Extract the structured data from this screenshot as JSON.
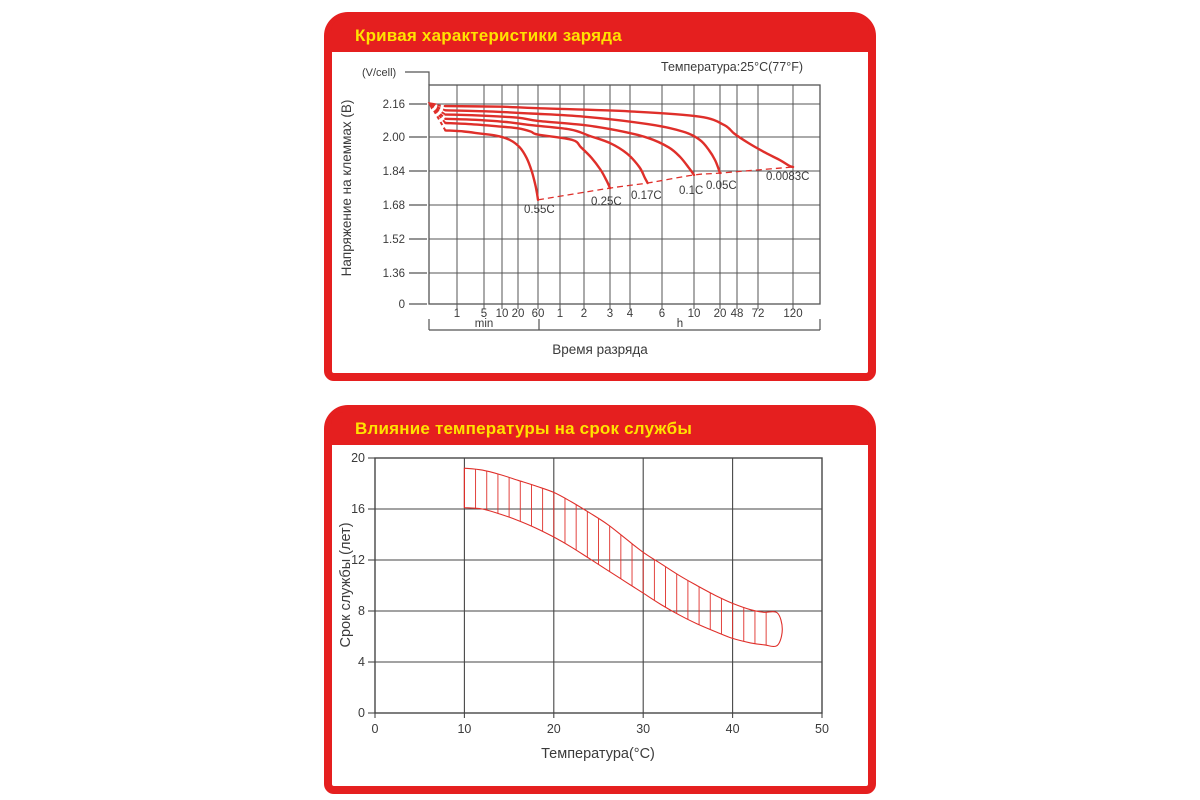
{
  "page": {
    "background": "#ffffff"
  },
  "colors": {
    "card_red": "#e51f1f",
    "title_yellow": "#ffe200",
    "chart_red": "#df2f2a",
    "grid_gray": "#545454",
    "text_gray": "#3b3b3b"
  },
  "cards": [
    {
      "title": "Кривая характеристики заряда"
    },
    {
      "title": "Влияние температуры на срок службы"
    }
  ],
  "chart_data": [
    {
      "type": "line",
      "title": "Кривая характеристики заряда",
      "temperature_note": "Температура:25°C(77°F)",
      "xlabel": "Время разряда",
      "ylabel": "Напряжение на клеммах (В)",
      "y_unit": "(V/cell)",
      "x_axis": {
        "scale": "logarithmic, split into minutes and hours sections",
        "minute_ticks": [
          "1",
          "5",
          "10",
          "20",
          "60"
        ],
        "hour_ticks": [
          "1",
          "2",
          "3",
          "4",
          "6",
          "10",
          "20",
          "48",
          "72",
          "120"
        ],
        "section_labels": [
          "min",
          "h"
        ]
      },
      "y_ticks": [
        "2.16",
        "2.00",
        "1.84",
        "1.68",
        "1.52",
        "1.36",
        "0"
      ],
      "grid": true,
      "series": [
        {
          "name": "0.55C",
          "points_min_V": [
            [
              0.5,
              2.035
            ],
            [
              1.5,
              2.03
            ],
            [
              4,
              2.02
            ],
            [
              8,
              2.01
            ],
            [
              14,
              1.99
            ],
            [
              22,
              1.955
            ],
            [
              32,
              1.905
            ],
            [
              42,
              1.845
            ],
            [
              50,
              1.79
            ],
            [
              56,
              1.745
            ],
            [
              60,
              1.706
            ]
          ]
        },
        {
          "name": "0.25C",
          "points_min_V": [
            [
              0.5,
              2.07
            ],
            [
              2,
              2.065
            ],
            [
              8,
              2.055
            ],
            [
              20,
              2.045
            ],
            [
              40,
              2.03
            ],
            [
              60,
              2.015
            ],
            [
              85,
              1.99
            ],
            [
              110,
              1.955
            ],
            [
              135,
              1.905
            ],
            [
              155,
              1.85
            ],
            [
              170,
              1.8
            ],
            [
              180,
              1.762
            ]
          ]
        },
        {
          "name": "0.17C",
          "points_min_V": [
            [
              0.5,
              2.09
            ],
            [
              3,
              2.085
            ],
            [
              12,
              2.075
            ],
            [
              40,
              2.06
            ],
            [
              80,
              2.04
            ],
            [
              130,
              2.01
            ],
            [
              180,
              1.975
            ],
            [
              230,
              1.925
            ],
            [
              270,
              1.862
            ],
            [
              290,
              1.81
            ],
            [
              300,
              1.786
            ]
          ]
        },
        {
          "name": "0.1C",
          "points_min_V": [
            [
              0.5,
              2.11
            ],
            [
              4,
              2.105
            ],
            [
              20,
              2.095
            ],
            [
              60,
              2.08
            ],
            [
              120,
              2.06
            ],
            [
              200,
              2.035
            ],
            [
              300,
              2.0
            ],
            [
              400,
              1.955
            ],
            [
              480,
              1.91
            ],
            [
              550,
              1.86
            ],
            [
              600,
              1.824
            ]
          ]
        },
        {
          "name": "0.05C",
          "points_min_V": [
            [
              0.5,
              2.13
            ],
            [
              6,
              2.125
            ],
            [
              40,
              2.115
            ],
            [
              120,
              2.1
            ],
            [
              300,
              2.065
            ],
            [
              500,
              2.03
            ],
            [
              700,
              1.99
            ],
            [
              900,
              1.94
            ],
            [
              1050,
              1.895
            ],
            [
              1150,
              1.855
            ],
            [
              1200,
              1.833
            ]
          ]
        },
        {
          "name": "0.0083C",
          "points_min_V": [
            [
              0.5,
              2.15
            ],
            [
              10,
              2.147
            ],
            [
              60,
              2.14
            ],
            [
              240,
              2.125
            ],
            [
              700,
              2.1
            ],
            [
              1500,
              2.06
            ],
            [
              2500,
              2.02
            ],
            [
              3600,
              1.975
            ],
            [
              4800,
              1.93
            ],
            [
              6000,
              1.893
            ],
            [
              6800,
              1.868
            ],
            [
              7200,
              1.862
            ]
          ]
        }
      ],
      "cutoff_dashed_line_points_min_V": [
        [
          60,
          1.706
        ],
        [
          180,
          1.762
        ],
        [
          300,
          1.786
        ],
        [
          600,
          1.824
        ],
        [
          1200,
          1.833
        ],
        [
          7200,
          1.862
        ]
      ],
      "fan_origin": {
        "t_min": 0.21,
        "V": 2.155
      }
    },
    {
      "type": "area-band",
      "title": "Влияние температуры на срок службы",
      "xlabel": "Температура(°C)",
      "ylabel": "Срок службы (лет)",
      "xlim": [
        0,
        50
      ],
      "ylim": [
        0,
        20
      ],
      "x_ticks": [
        0,
        10,
        20,
        30,
        40,
        50
      ],
      "y_ticks": [
        0,
        4,
        8,
        12,
        16,
        20
      ],
      "grid": true,
      "band": {
        "hatch": "vertical",
        "upper_T_years": [
          [
            10,
            19.2
          ],
          [
            12,
            19.05
          ],
          [
            14,
            18.7
          ],
          [
            16,
            18.25
          ],
          [
            18,
            17.8
          ],
          [
            20,
            17.3
          ],
          [
            22,
            16.55
          ],
          [
            24,
            15.7
          ],
          [
            26,
            14.8
          ],
          [
            28,
            13.7
          ],
          [
            30,
            12.6
          ],
          [
            32,
            11.7
          ],
          [
            34,
            10.8
          ],
          [
            36,
            10.0
          ],
          [
            38,
            9.25
          ],
          [
            40,
            8.6
          ],
          [
            42,
            8.1
          ],
          [
            43.5,
            7.9
          ],
          [
            45,
            7.85
          ]
        ],
        "lower_T_years": [
          [
            10,
            16.1
          ],
          [
            12,
            16.0
          ],
          [
            14,
            15.6
          ],
          [
            16,
            15.1
          ],
          [
            18,
            14.5
          ],
          [
            20,
            13.8
          ],
          [
            22,
            13.0
          ],
          [
            24,
            12.1
          ],
          [
            26,
            11.2
          ],
          [
            28,
            10.3
          ],
          [
            30,
            9.4
          ],
          [
            32,
            8.5
          ],
          [
            34,
            7.7
          ],
          [
            36,
            7.0
          ],
          [
            38,
            6.4
          ],
          [
            40,
            5.85
          ],
          [
            42,
            5.5
          ],
          [
            43.5,
            5.35
          ],
          [
            45,
            5.3
          ]
        ]
      }
    }
  ]
}
